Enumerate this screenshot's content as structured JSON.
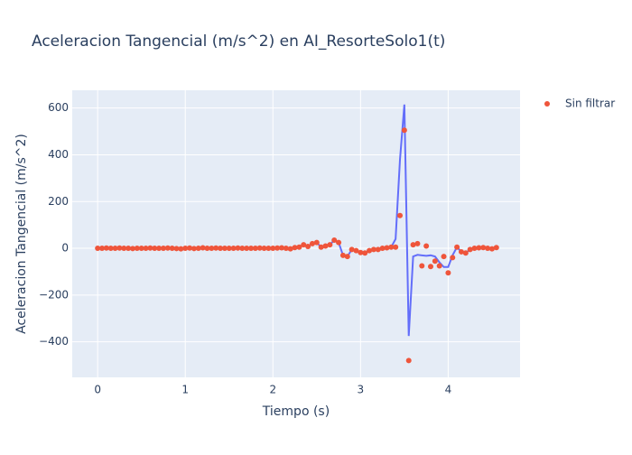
{
  "chart_data": {
    "type": "scatter",
    "title": "Aceleracion Tangencial (m/s^2) en AI_ResorteSolo1(t)",
    "x_label": "Tiempo (s)",
    "y_label": "Aceleracion Tangencial (m/s^2)",
    "x": [
      0,
      0.05,
      0.1,
      0.15,
      0.2,
      0.25,
      0.3,
      0.35,
      0.4,
      0.45,
      0.5,
      0.55,
      0.6,
      0.65,
      0.7,
      0.75,
      0.8,
      0.85,
      0.9,
      0.95,
      1,
      1.05,
      1.1,
      1.15,
      1.2,
      1.25,
      1.3,
      1.35,
      1.4,
      1.45,
      1.5,
      1.55,
      1.6,
      1.65,
      1.7,
      1.75,
      1.8,
      1.85,
      1.9,
      1.95,
      2,
      2.05,
      2.1,
      2.15,
      2.2,
      2.25,
      2.3,
      2.35,
      2.4,
      2.45,
      2.5,
      2.55,
      2.6,
      2.65,
      2.7,
      2.75,
      2.8,
      2.85,
      2.9,
      2.95,
      3,
      3.05,
      3.1,
      3.15,
      3.2,
      3.25,
      3.3,
      3.35,
      3.4,
      3.45,
      3.5,
      3.55,
      3.6,
      3.65,
      3.7,
      3.75,
      3.8,
      3.85,
      3.9,
      3.95,
      4,
      4.05,
      4.1,
      4.15,
      4.2,
      4.25,
      4.3,
      4.35,
      4.4,
      4.45,
      4.5,
      4.55
    ],
    "series": [
      {
        "name": "Sin filtrar",
        "mode": "markers",
        "color": "#ef553b",
        "values": [
          0,
          0,
          1,
          0,
          0,
          1,
          0,
          0,
          -1,
          0,
          0,
          0,
          1,
          0,
          0,
          0,
          1,
          0,
          -1,
          -2,
          0,
          1,
          -1,
          0,
          2,
          0,
          0,
          1,
          0,
          0,
          0,
          0,
          1,
          0,
          0,
          0,
          0,
          1,
          0,
          0,
          0,
          1,
          2,
          0,
          -2,
          3,
          5,
          15,
          8,
          20,
          25,
          5,
          10,
          15,
          35,
          25,
          -30,
          -35,
          -5,
          -10,
          -18,
          -20,
          -10,
          -5,
          -5,
          0,
          2,
          5,
          5,
          140,
          505,
          -480,
          15,
          20,
          -75,
          10,
          -78,
          -55,
          -75,
          -35,
          -105,
          -40,
          5,
          -15,
          -20,
          -5,
          0,
          2,
          3,
          0,
          -2,
          3
        ]
      },
      {
        "mode": "lines",
        "color": "#636efa",
        "values": [
          0,
          0,
          1,
          0,
          0,
          1,
          0,
          0,
          -1,
          0,
          0,
          0,
          1,
          0,
          0,
          0,
          1,
          0,
          -1,
          -2,
          0,
          1,
          -1,
          0,
          2,
          0,
          0,
          1,
          0,
          0,
          0,
          0,
          1,
          0,
          0,
          0,
          0,
          1,
          0,
          0,
          0,
          1,
          2,
          0,
          -2,
          3,
          5,
          15,
          8,
          20,
          25,
          5,
          10,
          15,
          35,
          25,
          -30,
          -35,
          -5,
          -10,
          -18,
          -20,
          -10,
          -5,
          -5,
          0,
          2,
          5,
          40,
          380,
          615,
          -375,
          -35,
          -28,
          -30,
          -32,
          -30,
          -35,
          -60,
          -80,
          -80,
          -30,
          5,
          -15,
          -20,
          -5,
          0,
          2,
          3,
          0,
          -2,
          3
        ]
      }
    ],
    "xlim": [
      -0.29,
      4.82
    ],
    "xticks": [
      0,
      1,
      2,
      3,
      4
    ],
    "ylim": [
      -552,
      676
    ],
    "yticks": [
      {
        "value": -400,
        "label": "−400"
      },
      {
        "value": -200,
        "label": "−200"
      },
      0,
      200,
      400,
      600
    ],
    "grid": true,
    "legend": "right"
  }
}
